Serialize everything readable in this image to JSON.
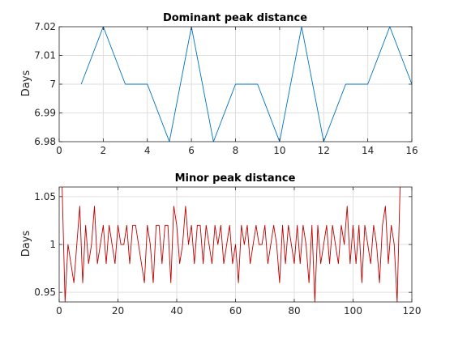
{
  "colors": {
    "series1": "#0072BD",
    "series2": "#C00000",
    "grid": "#dfdfdf",
    "axis": "#262626"
  },
  "chart_data": [
    {
      "type": "line",
      "title": "Dominant peak distance",
      "xlabel": "",
      "ylabel": "Days",
      "xlim": [
        0,
        16
      ],
      "ylim": [
        6.98,
        7.02
      ],
      "xticks": [
        0,
        2,
        4,
        6,
        8,
        10,
        12,
        14,
        16
      ],
      "yticks": [
        6.98,
        6.99,
        7.0,
        7.01,
        7.02
      ],
      "ytick_labels": [
        "6.98",
        "6.99",
        "7",
        "7.01",
        "7.02"
      ],
      "grid": true,
      "x": [
        1,
        2,
        3,
        4,
        5,
        6,
        7,
        8,
        9,
        10,
        11,
        12,
        13,
        14,
        15,
        16
      ],
      "y": [
        7.0,
        7.02,
        7.0,
        7.0,
        6.98,
        7.02,
        6.98,
        7.0,
        7.0,
        6.98,
        7.02,
        6.98,
        7.0,
        7.0,
        7.02,
        7.0
      ]
    },
    {
      "type": "line",
      "title": "Minor peak distance",
      "xlabel": "",
      "ylabel": "Days",
      "xlim": [
        0,
        120
      ],
      "ylim": [
        0.94,
        1.06
      ],
      "xticks": [
        0,
        20,
        40,
        60,
        80,
        100,
        120
      ],
      "yticks": [
        0.95,
        1.0,
        1.05
      ],
      "ytick_labels": [
        "0.95",
        "1",
        "1.05"
      ],
      "grid": true,
      "x_start": 1,
      "y": [
        1.06,
        0.94,
        1.0,
        0.98,
        0.96,
        1.0,
        1.04,
        0.96,
        1.02,
        0.98,
        1.0,
        1.04,
        0.98,
        1.0,
        1.02,
        0.98,
        1.02,
        1.0,
        0.98,
        1.02,
        1.0,
        1.0,
        1.02,
        0.98,
        1.02,
        1.02,
        1.0,
        0.98,
        0.96,
        1.02,
        1.0,
        0.96,
        1.02,
        1.02,
        0.98,
        1.02,
        1.02,
        0.96,
        1.04,
        1.02,
        0.98,
        1.0,
        1.04,
        1.0,
        1.02,
        0.98,
        1.02,
        1.02,
        0.98,
        1.02,
        1.0,
        0.98,
        1.02,
        1.0,
        1.02,
        0.98,
        1.0,
        1.02,
        0.98,
        1.0,
        0.96,
        1.02,
        1.0,
        1.02,
        0.98,
        1.0,
        1.02,
        1.0,
        1.0,
        1.02,
        0.98,
        1.0,
        1.02,
        1.0,
        0.96,
        1.02,
        0.98,
        1.02,
        1.0,
        0.98,
        1.02,
        0.98,
        1.02,
        1.0,
        0.96,
        1.02,
        0.94,
        1.02,
        0.98,
        1.0,
        1.02,
        0.98,
        1.02,
        1.0,
        0.98,
        1.02,
        1.0,
        1.04,
        0.98,
        1.02,
        0.98,
        1.02,
        0.96,
        1.02,
        1.0,
        0.98,
        1.02,
        1.0,
        0.96,
        1.02,
        1.04,
        0.98,
        1.02,
        1.0,
        0.94,
        1.06
      ]
    }
  ]
}
